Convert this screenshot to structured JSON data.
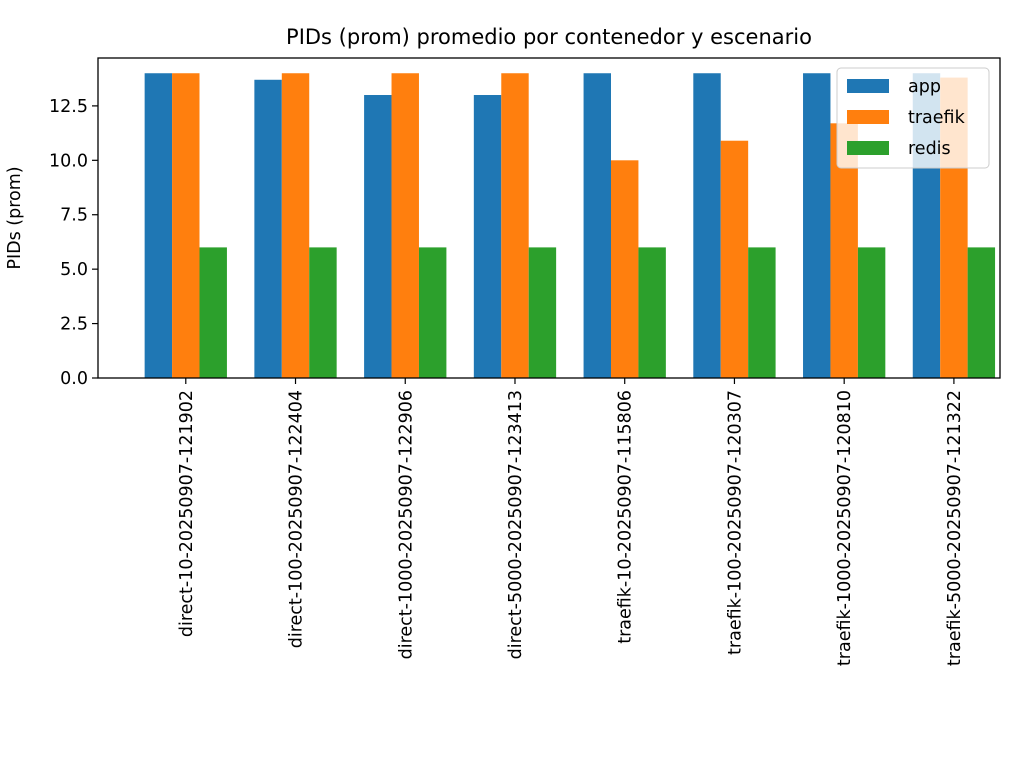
{
  "chart_data": {
    "type": "bar",
    "title": "PIDs (prom) promedio por contenedor y escenario",
    "xlabel": "",
    "ylabel": "PIDs (prom)",
    "ylim": [
      0,
      14.7
    ],
    "yticks": [
      0.0,
      2.5,
      5.0,
      7.5,
      10.0,
      12.5
    ],
    "ytick_labels": [
      "0.0",
      "2.5",
      "5.0",
      "7.5",
      "10.0",
      "12.5"
    ],
    "grid": false,
    "legend_position": "top-right",
    "categories": [
      "direct-10-20250907-121902",
      "direct-100-20250907-122404",
      "direct-1000-20250907-122906",
      "direct-5000-20250907-123413",
      "traefik-10-20250907-115806",
      "traefik-100-20250907-120307",
      "traefik-1000-20250907-120810",
      "traefik-5000-20250907-121322"
    ],
    "series": [
      {
        "name": "app",
        "color": "#1f77b4",
        "values": [
          14,
          13.7,
          13,
          13,
          14,
          14,
          14,
          14
        ]
      },
      {
        "name": "traefik",
        "color": "#ff7f0e",
        "values": [
          14,
          14,
          14,
          14,
          10,
          10.9,
          11.7,
          13.8
        ]
      },
      {
        "name": "redis",
        "color": "#2ca02c",
        "values": [
          6,
          6,
          6,
          6,
          6,
          6,
          6,
          6
        ]
      }
    ]
  }
}
